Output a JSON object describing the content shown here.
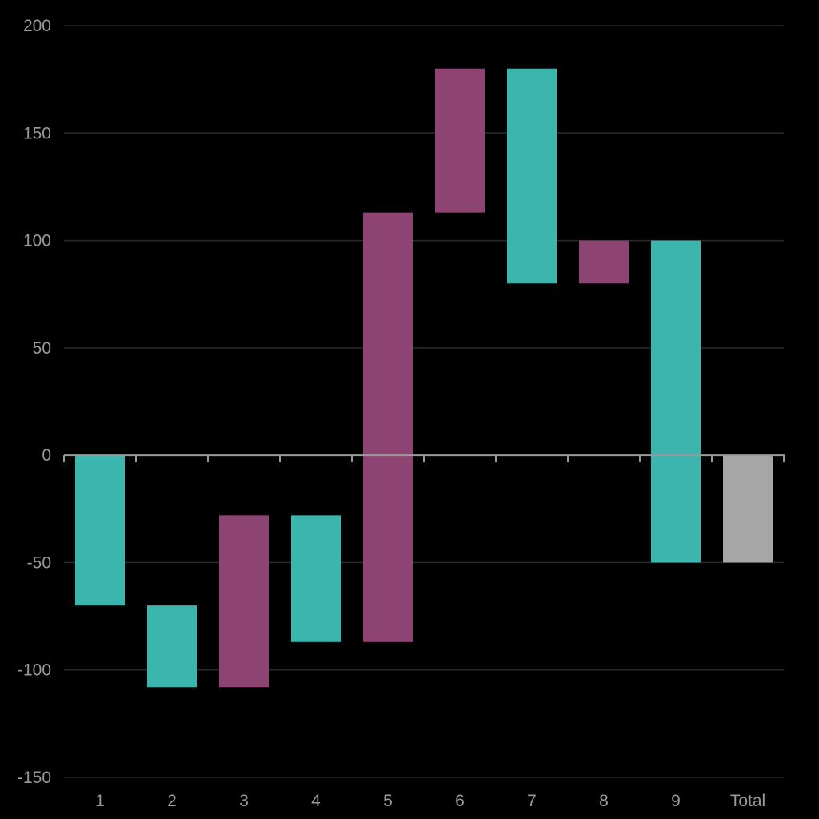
{
  "chart_data": {
    "type": "bar",
    "subtype": "waterfall",
    "title": "",
    "xlabel": "",
    "ylabel": "",
    "ylim": [
      -150,
      200
    ],
    "yticks": [
      200,
      150,
      100,
      50,
      0,
      -50,
      -100,
      -150
    ],
    "categories": [
      "1",
      "2",
      "3",
      "4",
      "5",
      "6",
      "7",
      "8",
      "9",
      "Total"
    ],
    "values": [
      -70,
      -38,
      80,
      -59,
      200,
      67,
      -100,
      20,
      -150,
      -50
    ],
    "is_total": [
      false,
      false,
      false,
      false,
      false,
      false,
      false,
      false,
      false,
      true
    ],
    "grid": true,
    "legend": "none",
    "colors": {
      "background": "#000000",
      "increase": "#8e4473",
      "decrease": "#3bb5ad",
      "total": "#a6a6a6",
      "grid": "#2a2a2a",
      "axis": "#9a9a9a",
      "text": "#9a9a9a"
    }
  }
}
